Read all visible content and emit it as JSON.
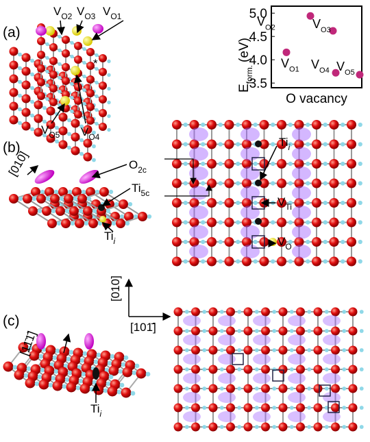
{
  "panels": [
    {
      "label": "(a)"
    },
    {
      "label": "(b)"
    },
    {
      "label": "(c)"
    }
  ],
  "annotations": {
    "a": [
      {
        "base": "V",
        "sub": "O2"
      },
      {
        "base": "V",
        "sub": "O3"
      },
      {
        "base": "V",
        "sub": "O1"
      },
      {
        "base": "*"
      },
      {
        "base": "V",
        "sub": "O4"
      },
      {
        "base": "V",
        "sub": "O5"
      }
    ],
    "b": [
      {
        "base": "[010]"
      },
      {
        "base": "O",
        "sub": "2c"
      },
      {
        "base": "Ti",
        "sub": "5c"
      },
      {
        "base": "Ti",
        "sub": "i"
      },
      {
        "base": "Ti",
        "sub": "i"
      },
      {
        "base": "V",
        "sub": "Ti"
      },
      {
        "base": "V",
        "sub": "O"
      }
    ],
    "axes": [
      {
        "base": "[010]"
      },
      {
        "base": "[101̄]"
      }
    ],
    "c": [
      {
        "base": "[11̄1̄]"
      },
      {
        "base": "Ti",
        "sub": "i"
      }
    ]
  },
  "chart_data": {
    "type": "scatter",
    "ylabel": {
      "base": "E",
      "sub": "form.",
      "rest": "(eV)"
    },
    "xlabel": "O vacancy",
    "label_prefix": "V",
    "categories": [
      "O1",
      "O2",
      "O3",
      "O4",
      "O5"
    ],
    "values": [
      4.16,
      4.94,
      4.62,
      3.72,
      3.68
    ],
    "color": "#c0287a",
    "ylim": [
      3.4,
      5.15
    ],
    "yticks": [
      {
        "value": 3.5,
        "label": "3.5"
      },
      {
        "value": 4.0,
        "label": "4.0"
      },
      {
        "value": 4.5,
        "label": "4.5"
      },
      {
        "value": 5.0,
        "label": "5.0"
      }
    ],
    "grid": false
  }
}
